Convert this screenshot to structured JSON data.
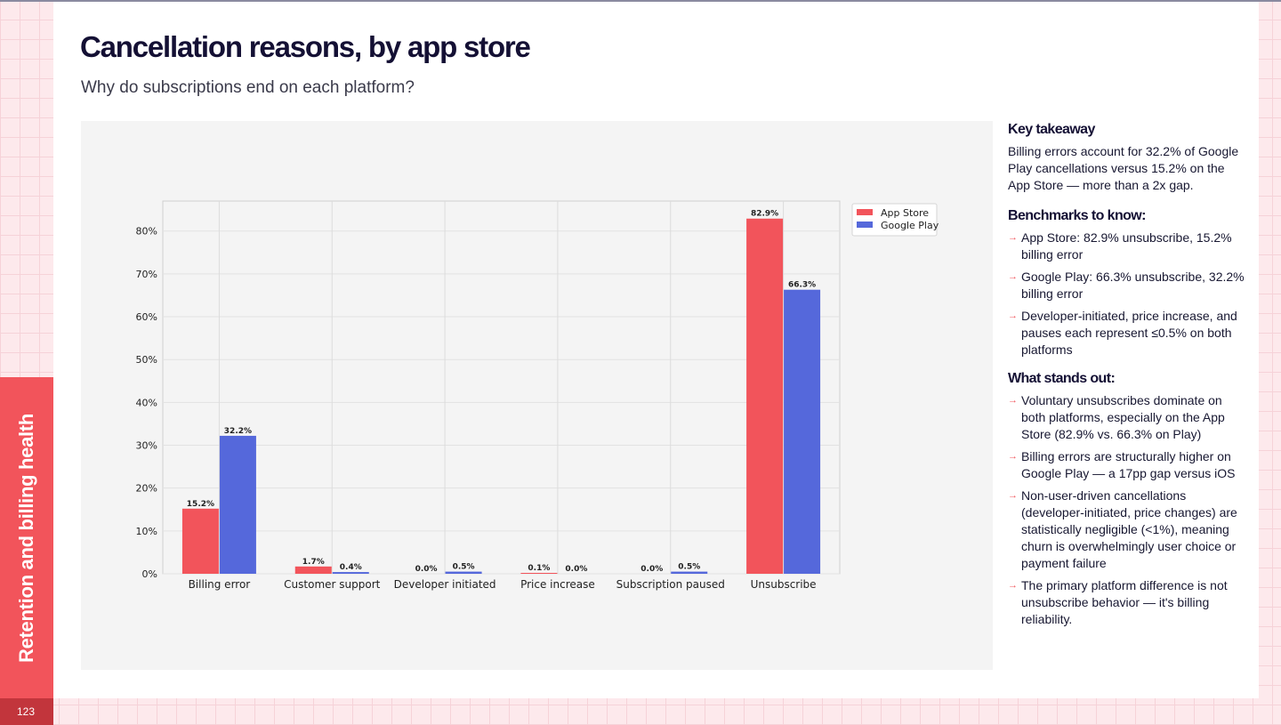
{
  "page": {
    "title": "Cancellation reasons, by app store",
    "subtitle": "Why do subscriptions end on each platform?",
    "section": "Retention and billing health",
    "page_number": "123"
  },
  "colors": {
    "accent": "#f2545b",
    "app_store": "#f2545b",
    "google_play": "#5568db",
    "title": "#141034"
  },
  "chart_data": {
    "type": "bar",
    "categories": [
      "Billing error",
      "Customer support",
      "Developer initiated",
      "Price increase",
      "Subscription paused",
      "Unsubscribe"
    ],
    "series": [
      {
        "name": "App Store",
        "values": [
          15.2,
          1.7,
          0.0,
          0.1,
          0.0,
          82.9
        ],
        "labels": [
          "15.2%",
          "1.7%",
          "0.0%",
          "0.1%",
          "0.0%",
          "82.9%"
        ],
        "color": "#f2545b"
      },
      {
        "name": "Google Play",
        "values": [
          32.2,
          0.4,
          0.5,
          0.0,
          0.5,
          66.3
        ],
        "labels": [
          "32.2%",
          "0.4%",
          "0.5%",
          "0.0%",
          "0.5%",
          "66.3%"
        ],
        "color": "#5568db"
      }
    ],
    "yticks": [
      "0%",
      "10%",
      "20%",
      "30%",
      "40%",
      "50%",
      "60%",
      "70%",
      "80%"
    ],
    "ylim": [
      0,
      87
    ],
    "grid": true,
    "legend_position": "top-right"
  },
  "takeaways": {
    "key_heading": "Key takeaway",
    "key_text": "Billing errors account for 32.2% of Google Play cancellations versus 15.2% on the App Store — more than a 2x gap.",
    "arrow": "→",
    "benchmarks_heading": "Benchmarks to know:",
    "benchmarks": [
      "App Store: 82.9% unsubscribe, 15.2% billing error",
      "Google Play: 66.3% unsubscribe, 32.2% billing error",
      "Developer-initiated, price increase, and pauses each represent ≤0.5% on both platforms"
    ],
    "standout_heading": "What stands out:",
    "standouts": [
      "Voluntary unsubscribes dominate on both platforms, especially on the App Store (82.9% vs. 66.3% on Play)",
      "Billing errors are structurally higher on Google Play — a 17pp gap versus iOS",
      "Non-user-driven cancellations (developer-initiated, price changes) are statistically negligible (<1%), meaning churn is overwhelmingly user choice or payment failure",
      "The primary platform difference is not unsubscribe behavior — it's billing reliability."
    ]
  }
}
